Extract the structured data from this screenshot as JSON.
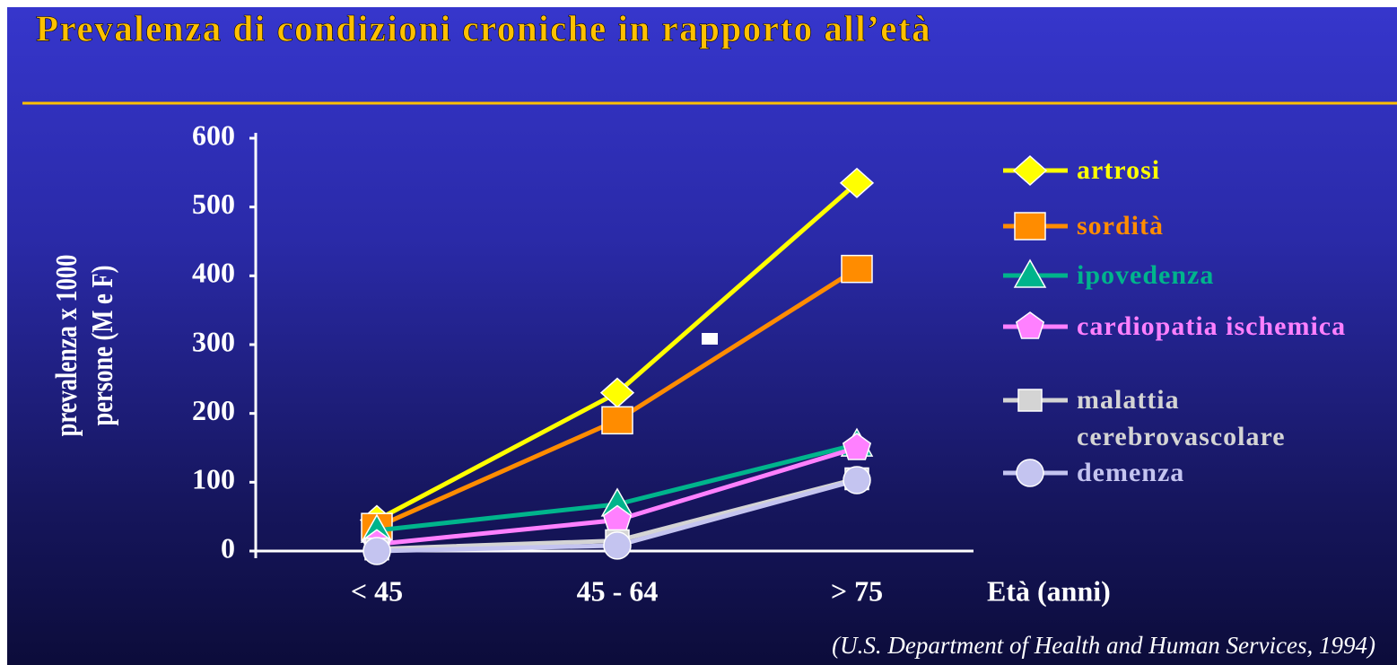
{
  "chart_data": {
    "type": "line",
    "title": "Prevalenza di condizioni croniche in rapporto all’età",
    "y_label": "prevalenza x 1000 persone (M e F)",
    "x_label": "Età (anni)",
    "source": "(U.S. Department of Health and Human Services, 1994)",
    "categories": [
      "< 45",
      "45 - 64",
      "> 75"
    ],
    "ylim": [
      0,
      600
    ],
    "yticks": [
      0,
      100,
      200,
      300,
      400,
      500,
      600
    ],
    "series": [
      {
        "name": "artrosi",
        "color": "#ffff00",
        "marker": "diamond",
        "values": [
          45,
          230,
          535
        ]
      },
      {
        "name": "sordità",
        "color": "#ff8c00",
        "marker": "square",
        "values": [
          35,
          190,
          410
        ]
      },
      {
        "name": "ipovedenza",
        "color": "#00b48c",
        "marker": "triangle",
        "values": [
          30,
          68,
          155
        ]
      },
      {
        "name": "cardiopatia ischemica",
        "color": "#ff80ff",
        "marker": "pentagon",
        "values": [
          10,
          45,
          150
        ]
      },
      {
        "name": "malattia cerebrovascolare",
        "color": "#d4d4d4",
        "marker": "smallsquare",
        "values": [
          3,
          15,
          105
        ]
      },
      {
        "name": "demenza",
        "color": "#c4c4f0",
        "marker": "circle",
        "values": [
          0,
          8,
          103
        ]
      }
    ]
  }
}
